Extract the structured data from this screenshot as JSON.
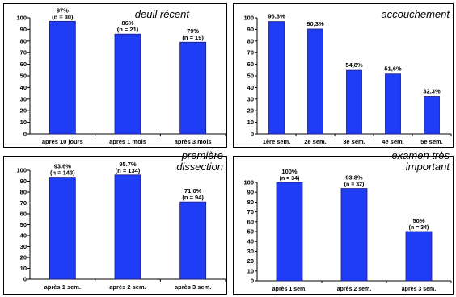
{
  "colors": {
    "bar": "#1f3df5",
    "bar_edge": "#1a1a7a",
    "frame": "#000000",
    "background": "#ffffff"
  },
  "chart_data": [
    {
      "type": "bar",
      "title": "deuil récent",
      "categories": [
        "après 10 jours",
        "après 1 mois",
        "après 3 mois"
      ],
      "values": [
        97,
        86,
        79
      ],
      "value_labels": [
        "97%",
        "86%",
        "79%"
      ],
      "n_labels": [
        "(n = 30)",
        "(n = 21)",
        "(n = 19)"
      ],
      "ylim": [
        0,
        100
      ],
      "yticks": [
        0,
        10,
        20,
        30,
        40,
        50,
        60,
        70,
        80,
        90,
        100
      ]
    },
    {
      "type": "bar",
      "title": "accouchement",
      "categories": [
        "1ère sem.",
        "2e sem.",
        "3e sem.",
        "4e sem.",
        "5e sem."
      ],
      "values": [
        96.8,
        90.3,
        54.8,
        51.6,
        32.3
      ],
      "value_labels": [
        "96,8%",
        "90,3%",
        "54,8%",
        "51,6%",
        "32,3%"
      ],
      "n_labels": [],
      "ylim": [
        0,
        100
      ],
      "yticks": [
        0,
        10,
        20,
        30,
        40,
        50,
        60,
        70,
        80,
        90,
        100
      ]
    },
    {
      "type": "bar",
      "title": "première dissection",
      "categories": [
        "après 1 sem.",
        "après 2 sem.",
        "après 3 sem."
      ],
      "values": [
        93.6,
        95.7,
        71.0
      ],
      "value_labels": [
        "93.6%",
        "95.7%",
        "71.0%"
      ],
      "n_labels": [
        "(n = 143)",
        "(n = 134)",
        "(n = 94)"
      ],
      "ylim": [
        0,
        100
      ],
      "yticks": [
        0,
        10,
        20,
        30,
        40,
        50,
        60,
        70,
        80,
        90,
        100
      ]
    },
    {
      "type": "bar",
      "title": "examen très important",
      "categories": [
        "après 1 sem.",
        "après 2 sem.",
        "après 3 sem."
      ],
      "values": [
        100,
        93.8,
        50
      ],
      "value_labels": [
        "100%",
        "93.8%",
        "50%"
      ],
      "n_labels": [
        "(n = 34)",
        "(n = 32)",
        "(n = 34)"
      ],
      "ylim": [
        0,
        100
      ],
      "yticks": [
        0,
        10,
        20,
        30,
        40,
        50,
        60,
        70,
        80,
        90,
        100
      ]
    }
  ]
}
